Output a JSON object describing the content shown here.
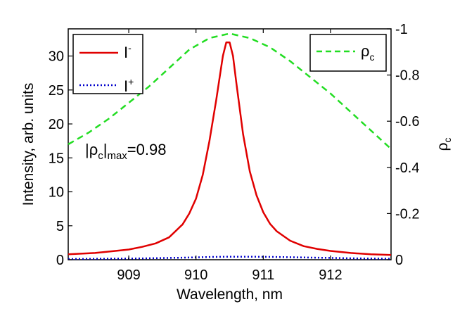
{
  "chart_data": {
    "type": "line",
    "x_label": "Wavelength, nm",
    "y_left_label": "Intensity, arb. units",
    "y_right_label": {
      "main": "ρ",
      "sub": "c"
    },
    "xlim": [
      908.1,
      912.9
    ],
    "ylim_left": [
      0,
      34
    ],
    "ylim_right": [
      0,
      -1.0
    ],
    "x_ticks": [
      909,
      910,
      911,
      912
    ],
    "x_tick_labels": [
      "909",
      "910",
      "911",
      "912"
    ],
    "y_left_ticks": [
      0,
      5,
      10,
      15,
      20,
      25,
      30
    ],
    "y_left_tick_labels": [
      "0",
      "5",
      "10",
      "15",
      "20",
      "25",
      "30"
    ],
    "y_right_ticks": [
      0,
      -0.2,
      -0.4,
      -0.6,
      -0.8,
      -1
    ],
    "y_right_tick_labels": [
      "0",
      "-0.2",
      "-0.4",
      "-0.6",
      "-0.8",
      "-1"
    ],
    "annotation": {
      "open": "|ρ",
      "sub1": "c",
      "close": "|",
      "sub2": "max",
      "value": "=0.98"
    },
    "legend_left": [
      {
        "name": "I",
        "sup": "-",
        "style": "solid",
        "color": "#e00000"
      },
      {
        "name": "I",
        "sup": "+",
        "style": "dotted",
        "color": "#0000cc"
      }
    ],
    "legend_right": [
      {
        "name": "ρ",
        "sub": "c",
        "style": "dashed",
        "color": "#22dd22"
      }
    ],
    "series": [
      {
        "name": "I-",
        "axis": "left",
        "color": "#e00000",
        "style": "solid",
        "x": [
          908.1,
          908.5,
          908.8,
          909.0,
          909.2,
          909.4,
          909.6,
          909.8,
          909.9,
          910.0,
          910.1,
          910.2,
          910.3,
          910.4,
          910.45,
          910.5,
          910.55,
          910.6,
          910.7,
          910.8,
          910.9,
          911.0,
          911.1,
          911.2,
          911.4,
          911.6,
          911.8,
          912.0,
          912.3,
          912.6,
          912.9
        ],
        "y": [
          0.8,
          1.0,
          1.3,
          1.5,
          1.9,
          2.4,
          3.3,
          5.2,
          6.8,
          9.0,
          12.5,
          17.5,
          23.5,
          30.0,
          32.0,
          32.0,
          30.0,
          26.0,
          18.5,
          13.0,
          9.5,
          7.0,
          5.3,
          4.2,
          2.8,
          2.0,
          1.6,
          1.3,
          1.0,
          0.8,
          0.7
        ]
      },
      {
        "name": "I+",
        "axis": "left",
        "color": "#0000cc",
        "style": "dotted",
        "x": [
          908.1,
          908.6,
          909.2,
          909.8,
          910.2,
          910.5,
          910.8,
          911.2,
          911.8,
          912.4,
          912.9
        ],
        "y": [
          0.1,
          0.15,
          0.2,
          0.3,
          0.4,
          0.45,
          0.45,
          0.4,
          0.3,
          0.2,
          0.15
        ]
      },
      {
        "name": "ρc",
        "axis": "right",
        "color": "#22dd22",
        "style": "dashed",
        "x": [
          908.1,
          908.4,
          908.7,
          909.0,
          909.3,
          909.6,
          909.9,
          910.2,
          910.5,
          910.8,
          911.1,
          911.4,
          911.7,
          912.0,
          912.3,
          912.6,
          912.9
        ],
        "y": [
          -0.5,
          -0.55,
          -0.61,
          -0.68,
          -0.75,
          -0.83,
          -0.91,
          -0.96,
          -0.98,
          -0.96,
          -0.92,
          -0.86,
          -0.79,
          -0.72,
          -0.64,
          -0.56,
          -0.48
        ]
      }
    ]
  }
}
